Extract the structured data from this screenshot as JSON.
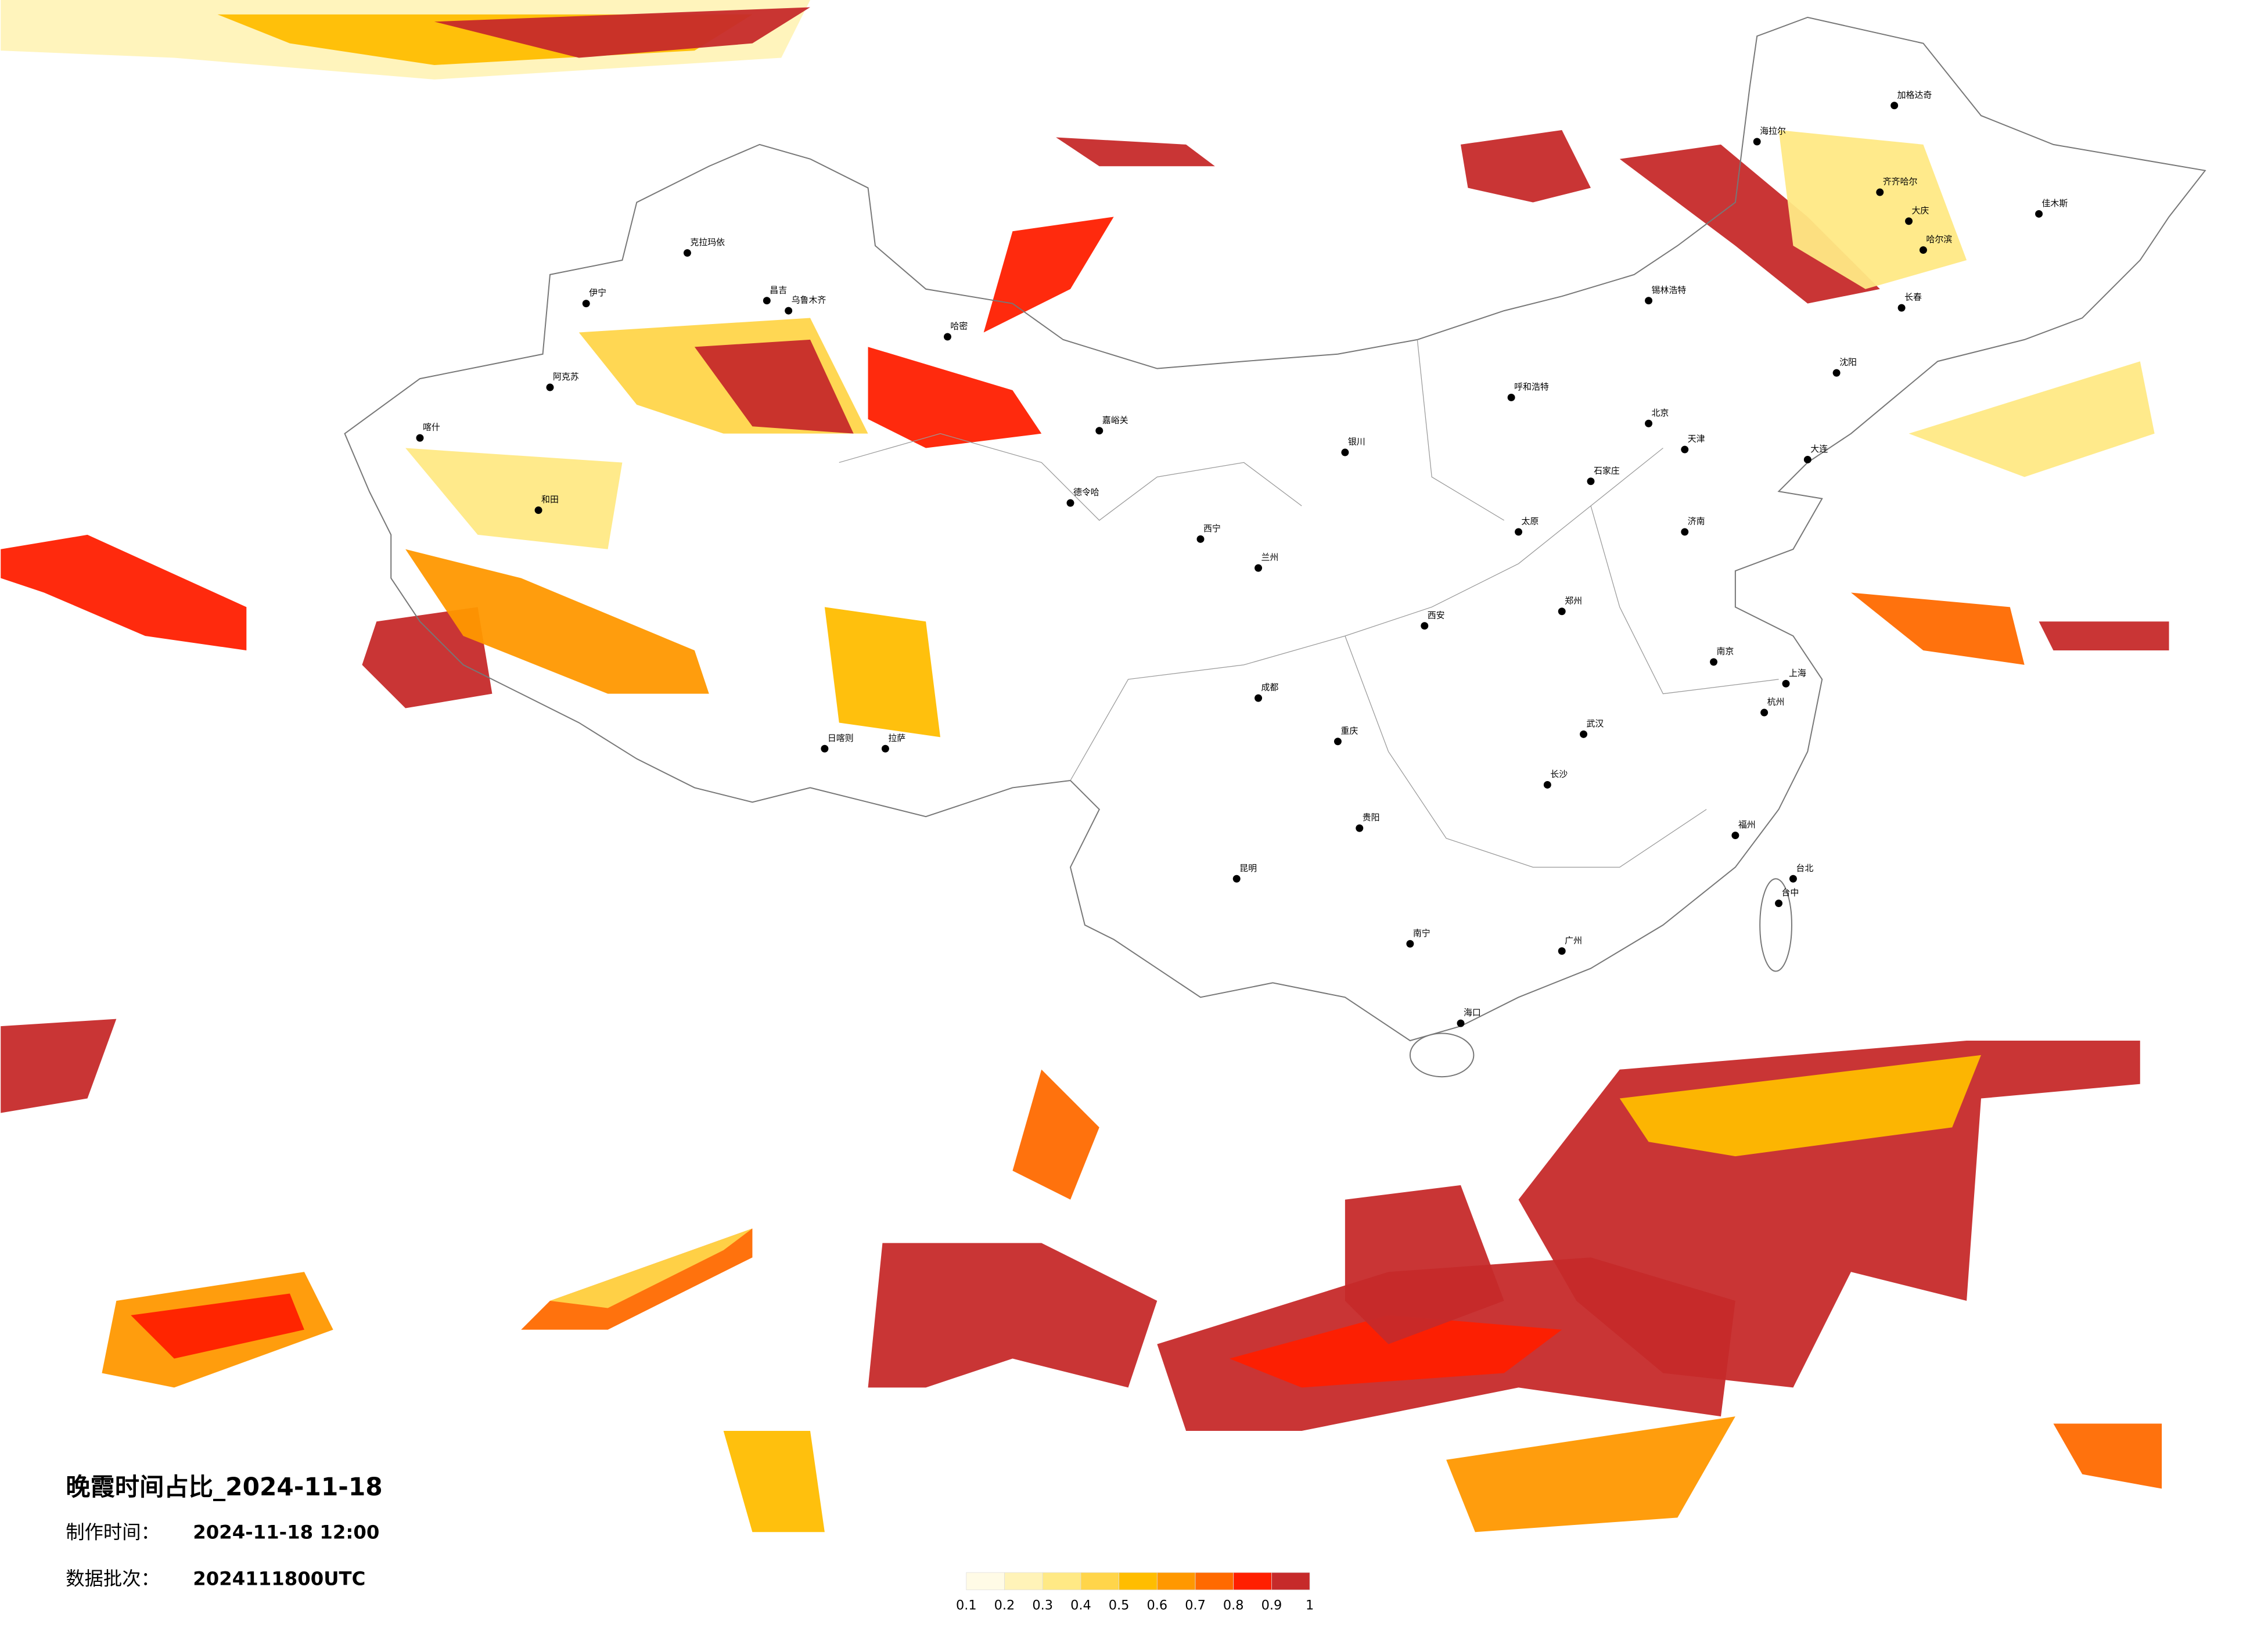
{
  "header": {
    "title": "晚霞时间占比_2024-11-18",
    "made_label": "制作时间：",
    "made_value": "2024-11-18 12:00",
    "batch_label": "数据批次：",
    "batch_value": "2024111800UTC"
  },
  "legend": {
    "ticks": [
      0.1,
      0.2,
      0.3,
      0.4,
      0.5,
      0.6,
      0.7,
      0.8,
      0.9,
      1
    ],
    "colors": [
      "#fffbe6",
      "#fff3b8",
      "#ffe985",
      "#ffd54a",
      "#ffbd00",
      "#ff9800",
      "#ff6a00",
      "#ff1f00",
      "#c62a2a"
    ]
  },
  "cities": [
    "克拉玛依",
    "伊宁",
    "阿克苏",
    "喀什",
    "和田",
    "昌吉",
    "乌鲁木齐",
    "哈密",
    "德令哈",
    "嘉峪关",
    "日喀则",
    "拉萨",
    "西宁",
    "兰州",
    "银川",
    "呼和浩特",
    "北京",
    "天津",
    "石家庄",
    "太原",
    "郑州",
    "西安",
    "成都",
    "重庆",
    "贵阳",
    "昆明",
    "南宁",
    "长沙",
    "武汉",
    "广州",
    "南京",
    "上海",
    "杭州",
    "福州",
    "台北",
    "台中",
    "海口",
    "哈尔滨",
    "长春",
    "沈阳",
    "大连",
    "济南",
    "齐齐哈尔",
    "海拉尔",
    "加格达奇",
    "锡林浩特",
    "大庆",
    "佳木斯"
  ]
}
